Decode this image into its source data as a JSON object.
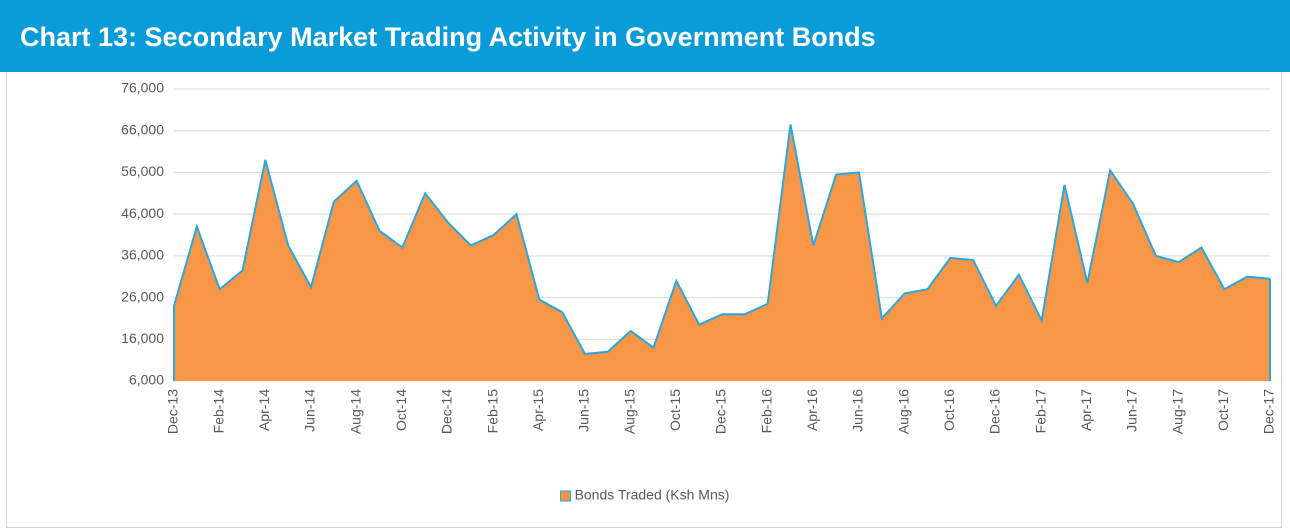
{
  "chart_data": {
    "type": "area",
    "title": "Chart 13: Secondary Market Trading Activity in Government Bonds",
    "categories": [
      "Dec-13",
      null,
      "Feb-14",
      null,
      "Apr-14",
      null,
      "Jun-14",
      null,
      "Aug-14",
      null,
      "Oct-14",
      null,
      "Dec-14",
      null,
      "Feb-15",
      null,
      "Apr-15",
      null,
      "Jun-15",
      null,
      "Aug-15",
      null,
      "Oct-15",
      null,
      "Dec-15",
      null,
      "Feb-16",
      null,
      "Apr-16",
      null,
      "Jun-16",
      null,
      "Aug-16",
      null,
      "Oct-16",
      null,
      "Dec-16",
      null,
      "Feb-17",
      null,
      "Apr-17",
      null,
      "Jun-17",
      null,
      "Aug-17",
      null,
      "Oct-17",
      null,
      "Dec-17"
    ],
    "series": [
      {
        "name": "Bonds Traded  (Ksh Mns)",
        "color": "#f79646",
        "line_color": "#2aa7df",
        "values": [
          24000,
          43000,
          28000,
          32500,
          59000,
          38500,
          28500,
          49000,
          54000,
          42000,
          38000,
          51000,
          44000,
          38500,
          41000,
          46000,
          25500,
          22500,
          12500,
          13000,
          18000,
          14000,
          30000,
          19500,
          22000,
          22000,
          24500,
          67500,
          38500,
          55500,
          56000,
          21000,
          27000,
          28000,
          35500,
          35000,
          24000,
          31500,
          20500,
          53000,
          29500,
          56500,
          48500,
          36000,
          34500,
          38000,
          28000,
          31000,
          30500
        ]
      }
    ],
    "ylim": [
      6000,
      76000
    ],
    "yticks": [
      {
        "value": 6000,
        "label": "6,000"
      },
      {
        "value": 16000,
        "label": "16,000"
      },
      {
        "value": 26000,
        "label": "26,000"
      },
      {
        "value": 36000,
        "label": "36,000"
      },
      {
        "value": 46000,
        "label": "46,000"
      },
      {
        "value": 56000,
        "label": "56,000"
      },
      {
        "value": 66000,
        "label": "66,000"
      },
      {
        "value": 76000,
        "label": "76,000"
      }
    ],
    "grid": true,
    "legend": "bottom"
  }
}
